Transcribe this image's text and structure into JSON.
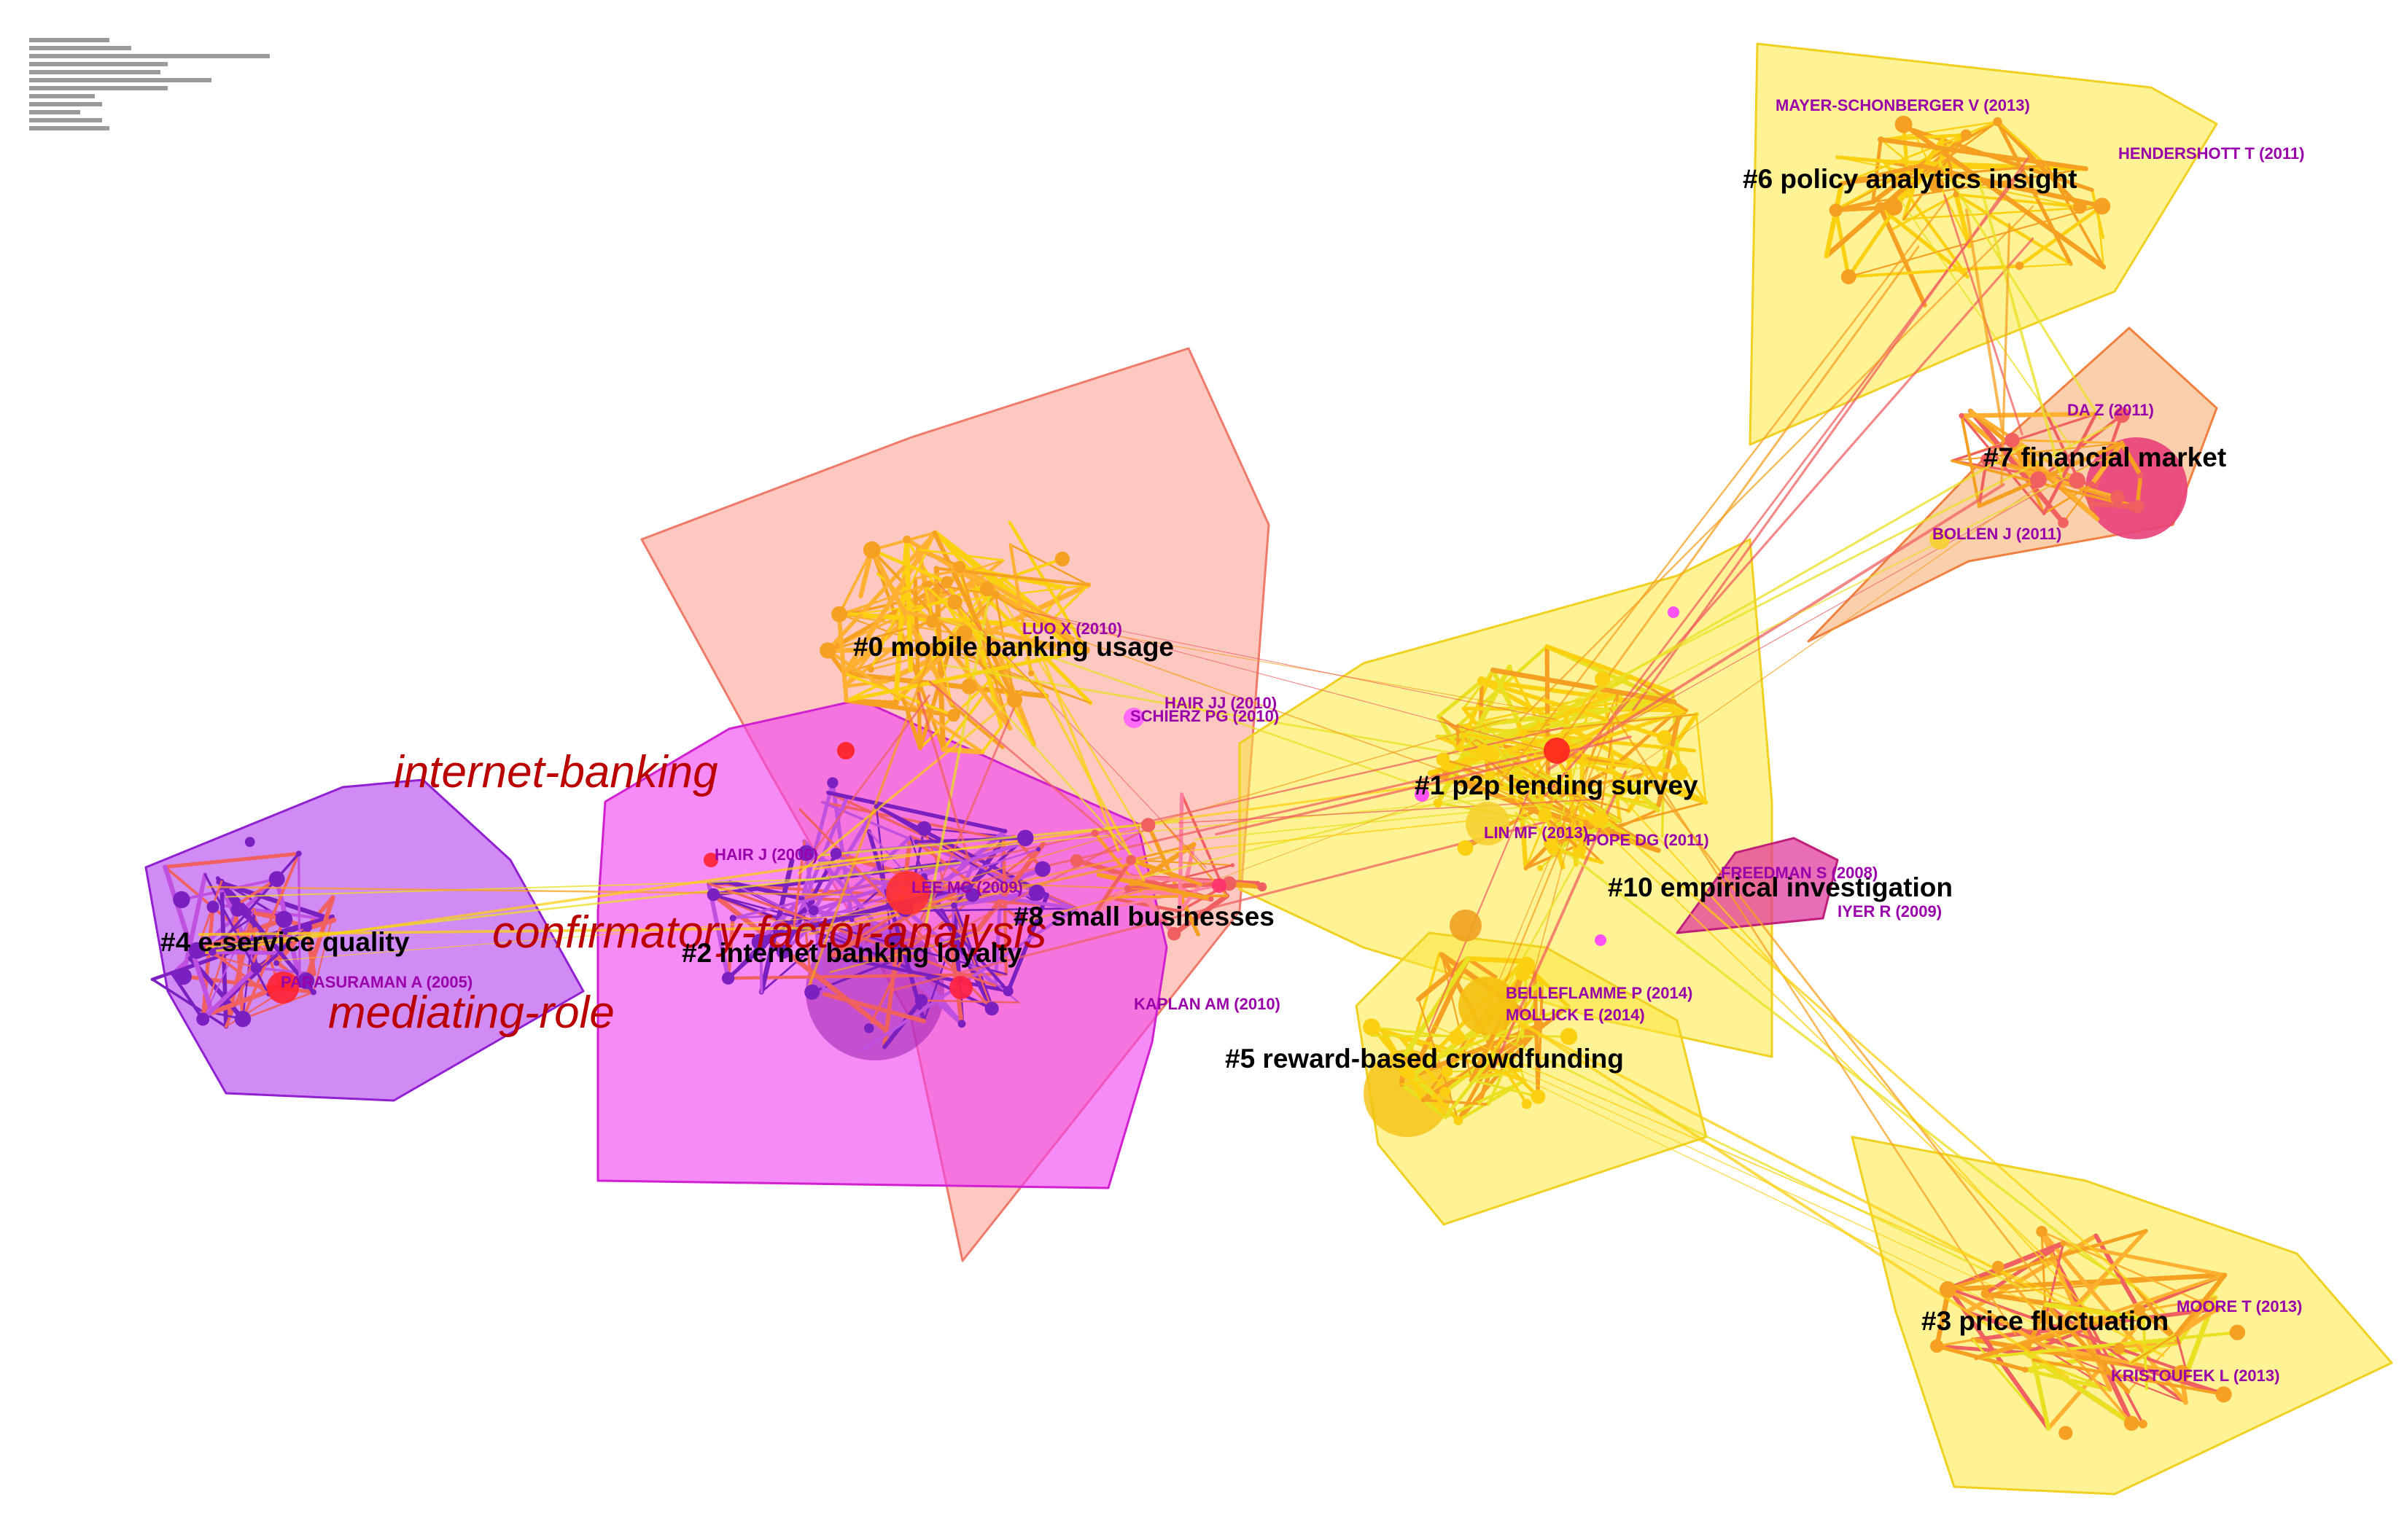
{
  "clusters": [
    {
      "id": 0,
      "label": "#0 mobile banking usage",
      "color": "#fa9a8c"
    },
    {
      "id": 1,
      "label": "#1 p2p lending survey",
      "color": "#fbe83c"
    },
    {
      "id": 2,
      "label": "#2 internet banking loyalty",
      "color": "#f03cf0"
    },
    {
      "id": 3,
      "label": "#3 price fluctuation",
      "color": "#fbe83c"
    },
    {
      "id": 4,
      "label": "#4 e-service quality",
      "color": "#b84df0"
    },
    {
      "id": 5,
      "label": "#5 reward-based crowdfunding",
      "color": "#fbe83c"
    },
    {
      "id": 6,
      "label": "#6 policy analytics insight",
      "color": "#fbe83c"
    },
    {
      "id": 7,
      "label": "#7 financial market",
      "color": "#f5a868"
    },
    {
      "id": 8,
      "label": "#8 small businesses",
      "color": "#f05a7a"
    },
    {
      "id": 10,
      "label": "#10 empirical investigation",
      "color": "#e0309a"
    }
  ],
  "references": [
    "MAYER-SCHONBERGER V (2013)",
    "HENDERSHOTT T (2011)",
    "DA Z (2011)",
    "BOLLEN J (2011)",
    "LUO X (2010)",
    "HAIR JJ (2010)",
    "SCHIERZ PG (2010)",
    "LIN MF (2013)",
    "POPE DG (2011)",
    "FREEDMAN S (2008)",
    "IYER R (2009)",
    "HAIR J (2006)",
    "LEE MC (2009)",
    "PARASURAMAN A (2005)",
    "KAPLAN AM (2010)",
    "BELLEFLAMME P (2014)",
    "MOLLICK E (2014)",
    "MOORE T (2013)",
    "KRISTOUFEK L (2013)"
  ],
  "keywords": [
    "internet-banking",
    "confirmatory-factor-analysis",
    "mediating-role"
  ],
  "edge_colors": [
    "#f5a020",
    "#fbd010",
    "#e8e020",
    "#f06060",
    "#7a20c0",
    "#c050e0",
    "#ff80a0",
    "#ffb030"
  ]
}
